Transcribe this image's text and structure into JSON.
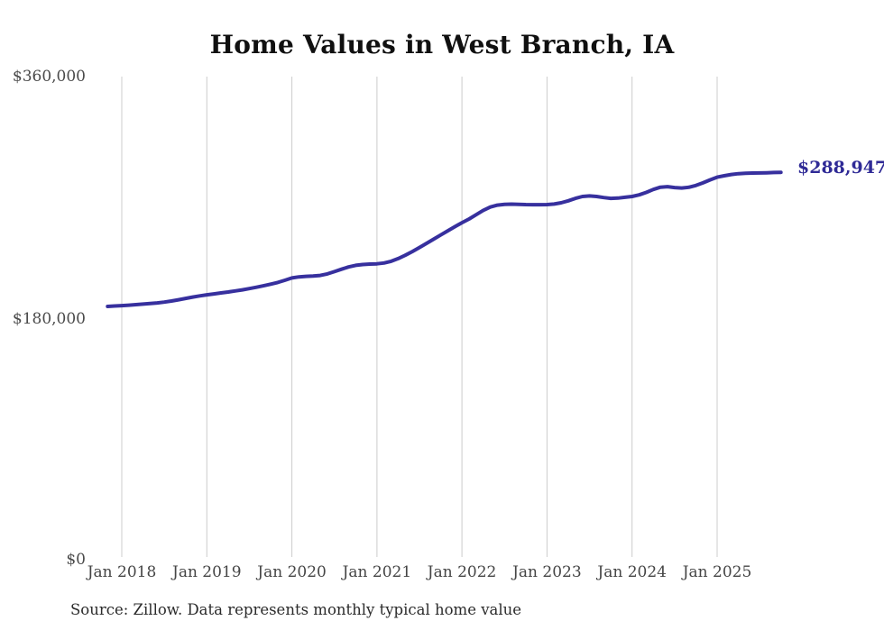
{
  "page": {
    "title": "Home Values in West Branch, IA",
    "source_note": "Source: Zillow. Data represents monthly typical home value"
  },
  "chart_data": {
    "type": "line",
    "title": "Home Values in West Branch, IA",
    "xlabel": "",
    "ylabel": "",
    "ylim": [
      0,
      360000
    ],
    "grid": "vertical-only",
    "y_tick_labels": [
      "$360,000",
      "$180,000",
      "$0"
    ],
    "y_tick_values": [
      360000,
      180000,
      0
    ],
    "x_tick_labels": [
      "Jan 2018",
      "Jan 2019",
      "Jan 2020",
      "Jan 2021",
      "Jan 2022",
      "Jan 2023",
      "Jan 2024",
      "Jan 2025"
    ],
    "x_tick_month_indices": [
      0,
      12,
      24,
      36,
      48,
      60,
      72,
      84
    ],
    "first_tick_index": 2,
    "end_label": "$288,947",
    "end_value": 288947,
    "line_color": "#37309e",
    "end_label_color": "#2f2a96",
    "grid_color": "#cccccc",
    "months": [
      "Nov 2017",
      "Dec 2017",
      "Jan 2018",
      "Feb 2018",
      "Mar 2018",
      "Apr 2018",
      "May 2018",
      "Jun 2018",
      "Jul 2018",
      "Aug 2018",
      "Sep 2018",
      "Oct 2018",
      "Nov 2018",
      "Dec 2018",
      "Jan 2019",
      "Feb 2019",
      "Mar 2019",
      "Apr 2019",
      "May 2019",
      "Jun 2019",
      "Jul 2019",
      "Aug 2019",
      "Sep 2019",
      "Oct 2019",
      "Nov 2019",
      "Dec 2019",
      "Jan 2020",
      "Feb 2020",
      "Mar 2020",
      "Apr 2020",
      "May 2020",
      "Jun 2020",
      "Jul 2020",
      "Aug 2020",
      "Sep 2020",
      "Oct 2020",
      "Nov 2020",
      "Dec 2020",
      "Jan 2021",
      "Feb 2021",
      "Mar 2021",
      "Apr 2021",
      "May 2021",
      "Jun 2021",
      "Jul 2021",
      "Aug 2021",
      "Sep 2021",
      "Oct 2021",
      "Nov 2021",
      "Dec 2021",
      "Jan 2022",
      "Feb 2022",
      "Mar 2022",
      "Apr 2022",
      "May 2022",
      "Jun 2022",
      "Jul 2022",
      "Aug 2022",
      "Sep 2022",
      "Oct 2022",
      "Nov 2022",
      "Dec 2022",
      "Jan 2023",
      "Feb 2023",
      "Mar 2023",
      "Apr 2023",
      "May 2023",
      "Jun 2023",
      "Jul 2023",
      "Aug 2023",
      "Sep 2023",
      "Oct 2023",
      "Nov 2023",
      "Dec 2023",
      "Jan 2024",
      "Feb 2024",
      "Mar 2024",
      "Apr 2024",
      "May 2024",
      "Jun 2024",
      "Jul 2024",
      "Aug 2024",
      "Sep 2024",
      "Oct 2024",
      "Nov 2024",
      "Dec 2024",
      "Jan 2025",
      "Feb 2025",
      "Mar 2025",
      "Apr 2025",
      "May 2025",
      "Jun 2025",
      "Jul 2025",
      "Aug 2025",
      "Sep 2025",
      "Oct 2025"
    ],
    "values": [
      189400,
      189700,
      190000,
      190300,
      190700,
      191100,
      191500,
      192000,
      192600,
      193400,
      194300,
      195300,
      196300,
      197200,
      198000,
      198700,
      199400,
      200100,
      200900,
      201700,
      202600,
      203600,
      204700,
      205900,
      207200,
      208800,
      210500,
      211300,
      211700,
      211900,
      212400,
      213500,
      215200,
      217000,
      218700,
      219900,
      220500,
      220800,
      221000,
      221600,
      222900,
      224900,
      227400,
      230100,
      233100,
      236200,
      239300,
      242400,
      245500,
      248600,
      251500,
      254300,
      257500,
      260700,
      263200,
      264600,
      265100,
      265300,
      265200,
      265000,
      264900,
      264900,
      265000,
      265400,
      266300,
      267800,
      269600,
      271000,
      271400,
      271000,
      270200,
      269600,
      269800,
      270400,
      271000,
      272200,
      274000,
      276200,
      277900,
      278300,
      277600,
      277300,
      277800,
      279200,
      281100,
      283300,
      285300,
      286400,
      287300,
      287900,
      288200,
      288400,
      288500,
      288600,
      288800,
      288947
    ]
  }
}
